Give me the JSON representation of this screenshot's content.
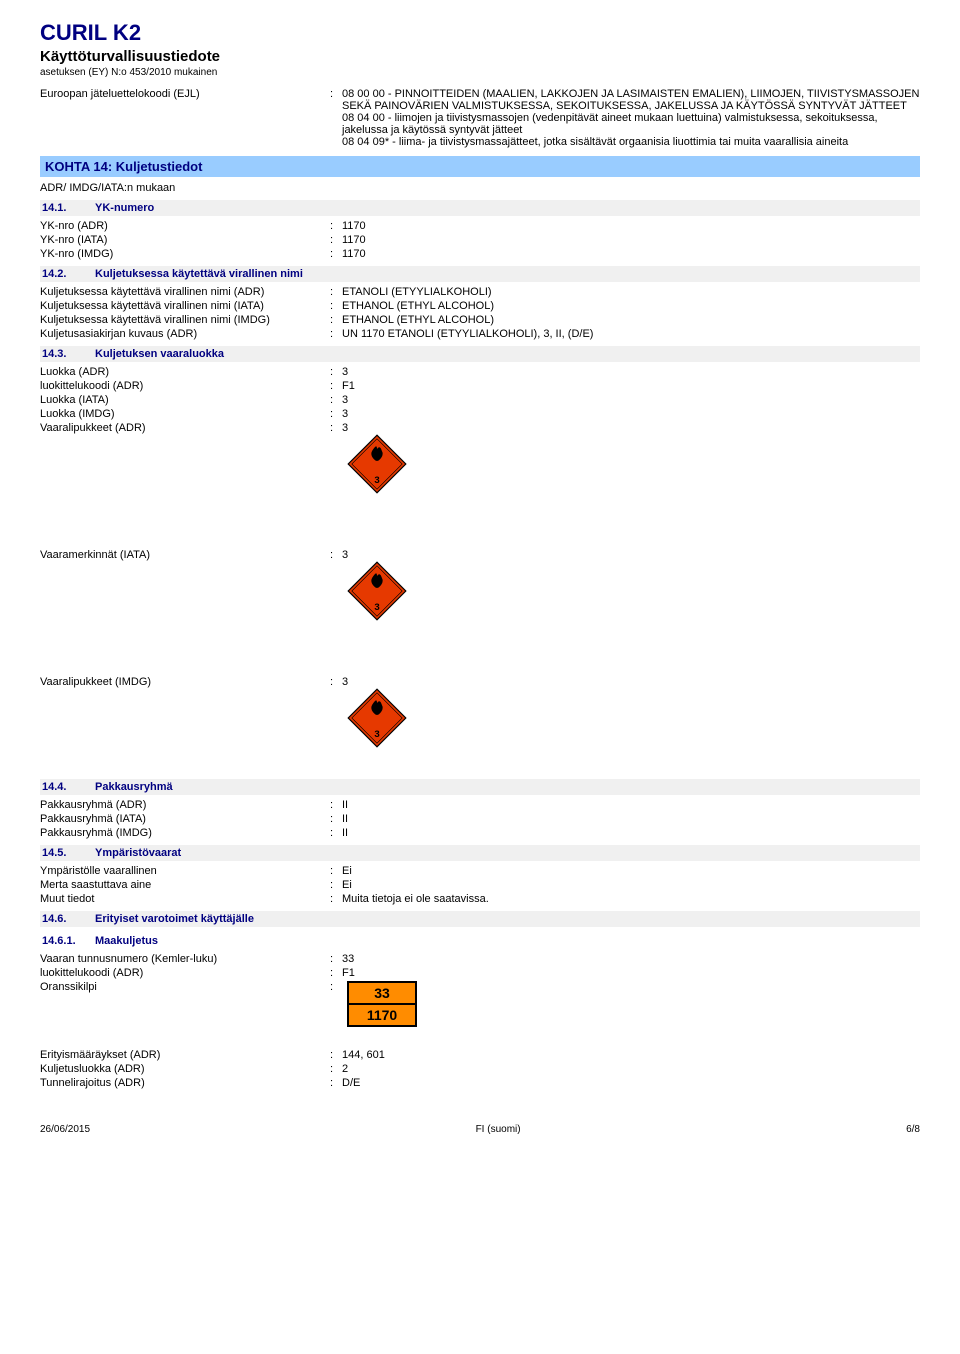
{
  "header": {
    "product_title": "CURIL K2",
    "doc_title": "Käyttöturvallisuustiedote",
    "regulation": "asetuksen (EY) N:o 453/2010 mukainen"
  },
  "ewc": {
    "label": "Euroopan jäteluettelokoodi (EJL)",
    "value": "08 00 00 - PINNOITTEIDEN (MAALIEN, LAKKOJEN JA LASIMAISTEN EMALIEN), LIIMOJEN, TIIVISTYSMASSOJEN SEKÄ PAINOVÄRIEN VALMISTUKSESSA, SEKOITUKSESSA, JAKELUSSA JA KÄYTÖSSÄ SYNTYVÄT JÄTTEET\n08 04 00 - liimojen ja tiivistysmassojen (vedenpitävät aineet mukaan luettuina) valmistuksessa, sekoituksessa, jakelussa ja käytössä syntyvät jätteet\n08 04 09* - liima- ja tiivistysmassajätteet, jotka sisältävät orgaanisia liuottimia tai muita vaarallisia aineita"
  },
  "section14": {
    "title": "KOHTA 14: Kuljetustiedot",
    "subheader": "ADR/ IMDG/IATA:n mukaan",
    "s14_1": {
      "num": "14.1.",
      "title": "YK-numero",
      "rows": [
        {
          "label": "YK-nro (ADR)",
          "value": "1170"
        },
        {
          "label": "YK-nro (IATA)",
          "value": "1170"
        },
        {
          "label": "YK-nro (IMDG)",
          "value": "1170"
        }
      ]
    },
    "s14_2": {
      "num": "14.2.",
      "title": "Kuljetuksessa käytettävä virallinen nimi",
      "rows": [
        {
          "label": "Kuljetuksessa käytettävä virallinen nimi (ADR)",
          "value": "ETANOLI (ETYYLIALKOHOLI)"
        },
        {
          "label": "Kuljetuksessa käytettävä virallinen nimi (IATA)",
          "value": "ETHANOL (ETHYL ALCOHOL)"
        },
        {
          "label": "Kuljetuksessa käytettävä virallinen nimi (IMDG)",
          "value": "ETHANOL (ETHYL ALCOHOL)"
        },
        {
          "label": "Kuljetusasiakirjan kuvaus (ADR)",
          "value": "UN 1170 ETANOLI (ETYYLIALKOHOLI), 3, II, (D/E)"
        }
      ]
    },
    "s14_3": {
      "num": "14.3.",
      "title": "Kuljetuksen vaaraluokka",
      "rows": [
        {
          "label": "Luokka (ADR)",
          "value": "3"
        },
        {
          "label": "luokittelukoodi (ADR)",
          "value": "F1"
        },
        {
          "label": "Luokka (IATA)",
          "value": "3"
        },
        {
          "label": "Luokka (IMDG)",
          "value": "3"
        }
      ],
      "hazard_rows": [
        {
          "label": "Vaaralipukkeet (ADR)",
          "value": "3"
        },
        {
          "label": "Vaaramerkinnät (IATA)",
          "value": "3"
        },
        {
          "label": "Vaaralipukkeet (IMDG)",
          "value": "3"
        }
      ]
    },
    "s14_4": {
      "num": "14.4.",
      "title": "Pakkausryhmä",
      "rows": [
        {
          "label": "Pakkausryhmä (ADR)",
          "value": "II"
        },
        {
          "label": "Pakkausryhmä (IATA)",
          "value": "II"
        },
        {
          "label": "Pakkausryhmä (IMDG)",
          "value": "II"
        }
      ]
    },
    "s14_5": {
      "num": "14.5.",
      "title": "Ympäristövaarat",
      "rows": [
        {
          "label": "Ympäristölle vaarallinen",
          "value": "Ei"
        },
        {
          "label": "Merta saastuttava aine",
          "value": "Ei"
        },
        {
          "label": "Muut tiedot",
          "value": "Muita tietoja ei ole saatavissa."
        }
      ]
    },
    "s14_6": {
      "num": "14.6.",
      "title": "Erityiset varotoimet käyttäjälle"
    },
    "s14_6_1": {
      "num": "14.6.1.",
      "title": "Maakuljetus",
      "rows": [
        {
          "label": "Vaaran tunnusnumero (Kemler-luku)",
          "value": "33"
        },
        {
          "label": "luokittelukoodi (ADR)",
          "value": "F1"
        }
      ],
      "orange_label": "Oranssikilpi",
      "orange_top": "33",
      "orange_bottom": "1170",
      "rows2": [
        {
          "label": "Erityismääräykset (ADR)",
          "value": "144, 601"
        },
        {
          "label": "Kuljetusluokka (ADR)",
          "value": "2"
        },
        {
          "label": "Tunnelirajoitus (ADR)",
          "value": "D/E"
        }
      ]
    }
  },
  "hazard_diamond": {
    "fill": "#e63900",
    "stroke": "#000",
    "flame_fill": "#000",
    "class_num": "3"
  },
  "orange_plate": {
    "bg": "#ff8c00",
    "border": "#000"
  },
  "footer": {
    "date": "26/06/2015",
    "lang": "FI (suomi)",
    "page": "6/8"
  }
}
